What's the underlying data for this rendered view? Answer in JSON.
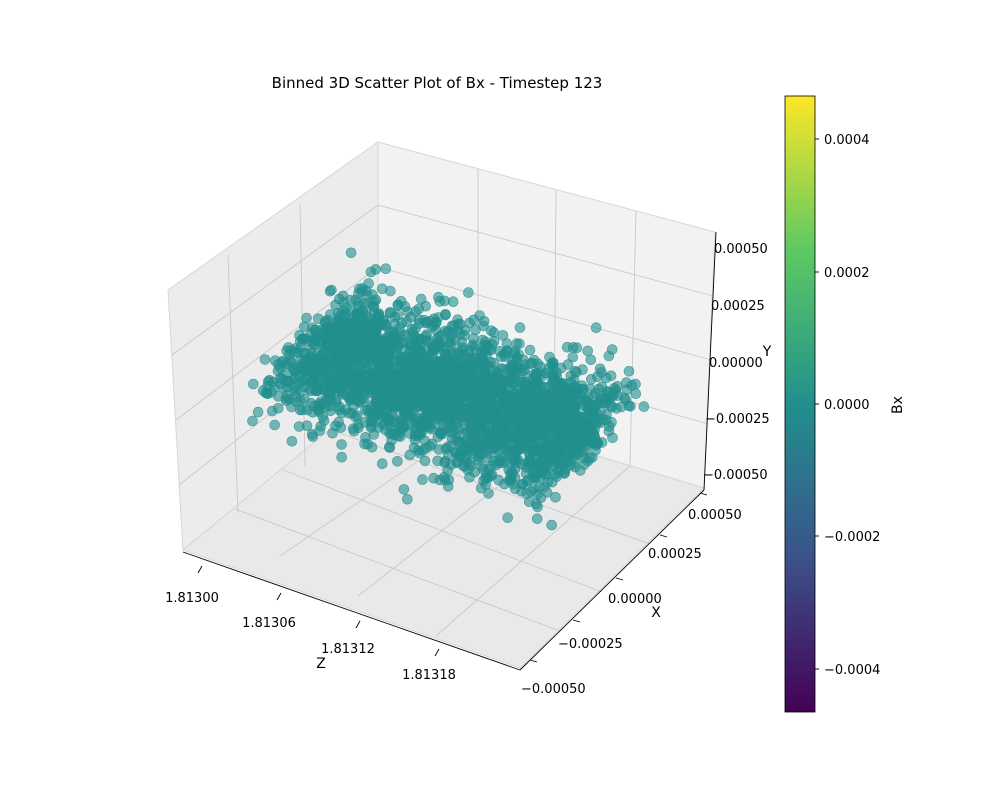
{
  "chart_data": {
    "type": "scatter",
    "projection": "3d",
    "title": "Binned 3D Scatter Plot of Bx - Timestep 123",
    "xlabel": "Z",
    "ylabel": "X",
    "zlabel": "Y",
    "axes": {
      "Z": {
        "range": [
          1.81297,
          1.81322
        ],
        "ticks": [
          "1.81300",
          "1.81306",
          "1.81312",
          "1.81318"
        ]
      },
      "X": {
        "range": [
          -0.0005,
          0.0005
        ],
        "ticks": [
          "−0.00050",
          "−0.00025",
          "0.00000",
          "0.00025",
          "0.00050"
        ]
      },
      "Y": {
        "range": [
          -0.0005,
          0.0005
        ],
        "ticks": [
          "−0.00050",
          "−0.00025",
          "0.00000",
          "0.00025",
          "0.00050"
        ]
      }
    },
    "grid": true,
    "series": [
      {
        "point_color": "#21908d",
        "value_Bx": 0.0,
        "distribution": {
          "Z_range": [
            1.81299,
            1.8132
          ],
          "X_center": 0.0,
          "X_spread": 0.00025,
          "Y_center": 0.0,
          "Y_spread": 0.0001
        },
        "points": [
          [
            1.81299,
            4e-05,
            2e-05
          ],
          [
            1.813,
            -6e-05,
            3e-05
          ],
          [
            1.81301,
            0.0001,
            -4e-05
          ],
          [
            1.81302,
            -0.00012,
            6e-05
          ],
          [
            1.81303,
            0.00015,
            1e-05
          ],
          [
            1.81304,
            -2e-05,
            -7e-05
          ],
          [
            1.81305,
            8e-05,
            8e-05
          ],
          [
            1.81306,
            -0.00018,
            -2e-05
          ],
          [
            1.81307,
            0.0002,
            4e-05
          ],
          [
            1.81308,
            -9e-05,
            9e-05
          ],
          [
            1.81309,
            3e-05,
            -0.0001
          ],
          [
            1.8131,
            -0.00016,
            5e-05
          ],
          [
            1.81311,
            0.00012,
            -6e-05
          ],
          [
            1.81312,
            -5e-05,
            7e-05
          ],
          [
            1.81313,
            0.00017,
            -3e-05
          ],
          [
            1.81314,
            -0.00021,
            2e-05
          ],
          [
            1.81315,
            6e-05,
            0.0001
          ],
          [
            1.81316,
            -0.00011,
            -8e-05
          ],
          [
            1.81317,
            0.00014,
            3e-05
          ],
          [
            1.81318,
            -3e-05,
            -5e-05
          ],
          [
            1.81319,
            9e-05,
            6e-05
          ],
          [
            1.8132,
            -0.00014,
            -1e-05
          ],
          [
            1.81298,
            0.0003,
            0.00012
          ],
          [
            1.81321,
            -0.00028,
            -0.00011
          ]
        ]
      }
    ],
    "colorbar": {
      "label": "Bx",
      "range": [
        -0.00046,
        0.00046
      ],
      "ticks": [
        "−0.0004",
        "−0.0002",
        "0.0000",
        "0.0002",
        "0.0004"
      ],
      "tick_values": [
        -0.0004,
        -0.0002,
        0.0,
        0.0002,
        0.0004
      ],
      "colormap": "viridis",
      "colormap_stops": [
        "#440154",
        "#3b528b",
        "#21908d",
        "#5dc963",
        "#fde725"
      ]
    }
  }
}
